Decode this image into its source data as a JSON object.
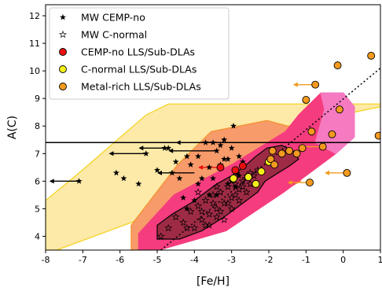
{
  "chart_data": {
    "type": "scatter",
    "xlabel": "[Fe/H]",
    "ylabel": "A(C)",
    "xlim": [
      -8,
      1
    ],
    "ylim": [
      3.5,
      12.4
    ],
    "xticks": [
      "-8",
      "-7",
      "-6",
      "-5",
      "-4",
      "-3",
      "-2",
      "-1",
      "0",
      "1"
    ],
    "yticks": [
      "4",
      "5",
      "6",
      "7",
      "8",
      "9",
      "10",
      "11",
      "12"
    ],
    "grid": false,
    "legend": {
      "location": "top-left",
      "entries": [
        {
          "label": "MW CEMP-no",
          "marker": "star-filled",
          "color": "#000000"
        },
        {
          "label": "MW C-normal",
          "marker": "star-open",
          "color": "#000000"
        },
        {
          "label": "CEMP-no LLS/Sub-DLAs",
          "marker": "circle",
          "color": "#e8100f"
        },
        {
          "label": "C-normal LLS/Sub-DLAs",
          "marker": "circle",
          "color": "#f4f01a"
        },
        {
          "label": "Metal-rich LLS/Sub-DLAs",
          "marker": "circle",
          "color": "#f39a1f"
        }
      ]
    },
    "reference_lines": {
      "horizontal_y": 7.4,
      "dotted_line": {
        "x": [
          -4.9,
          1
        ],
        "y": [
          3.5,
          10.1
        ]
      }
    },
    "regions": [
      {
        "name": "yellow",
        "fill": "#fde9a8",
        "stroke": "#f3d21a",
        "x": [
          -8,
          -8,
          -7.1,
          -5.3,
          -4.7,
          -3.05,
          -1.45,
          1,
          1,
          -2.9,
          -4.1,
          -5.5,
          -7.7
        ],
        "y": [
          3.5,
          5.3,
          6.3,
          8.4,
          8.8,
          8.8,
          8.8,
          8.8,
          8.7,
          7.6,
          6.1,
          4.6,
          3.5
        ]
      },
      {
        "name": "orange",
        "fill": "#f89b6a",
        "stroke": "#f3902a",
        "x": [
          -5.7,
          -5.7,
          -4.45,
          -3.55,
          -2.05,
          -0.95,
          -0.95,
          -1.15,
          -2.05,
          -3.55,
          -5.1
        ],
        "y": [
          3.5,
          4.4,
          6.6,
          7.8,
          8.2,
          7.8,
          7.0,
          6.0,
          5.3,
          4.1,
          3.5
        ]
      },
      {
        "name": "magenta",
        "fill": "#f53c7e",
        "stroke": "#f53c7e",
        "x": [
          -5.5,
          -5.5,
          -4.55,
          -3.0,
          -1.55,
          -1.2,
          -0.6,
          0,
          0.3,
          0.3,
          -0.2,
          -1.6,
          -3.15,
          -4.95
        ],
        "y": [
          3.5,
          4.1,
          5.5,
          6.6,
          7.8,
          8.4,
          9.2,
          9.2,
          8.7,
          7.6,
          7.0,
          5.6,
          4.2,
          3.5
        ]
      },
      {
        "name": "magenta-edge",
        "fill": "#f57ac0",
        "stroke": "#f57ac0",
        "x": [
          -0.6,
          0,
          0.3,
          0.3,
          -0.2,
          -0.75,
          -0.5
        ],
        "y": [
          9.2,
          9.2,
          8.7,
          7.6,
          7.0,
          7.4,
          8.6
        ]
      },
      {
        "name": "dark",
        "fill": "#9e2b45",
        "stroke": "#000000",
        "x": [
          -5.0,
          -5.0,
          -4.8,
          -4.6,
          -4.1,
          -3.7,
          -3.4,
          -3.0,
          -2.6,
          -2.35,
          -2.05,
          -1.65,
          -1.35,
          -1.2,
          -1.45,
          -1.75,
          -2.1,
          -2.3,
          -2.7,
          -3.2,
          -3.8,
          -4.4
        ],
        "y": [
          3.9,
          4.4,
          4.6,
          4.8,
          5.2,
          5.6,
          5.9,
          6.2,
          6.6,
          6.9,
          7.2,
          7.3,
          7.1,
          6.8,
          6.55,
          6.3,
          6.0,
          5.6,
          5.2,
          4.7,
          4.2,
          3.9
        ]
      }
    ],
    "series": [
      {
        "name": "MW CEMP-no",
        "marker": "star-filled",
        "color": "#000000",
        "x": [
          -7.1,
          -6.1,
          -5.9,
          -5.5,
          -5.3,
          -5.0,
          -4.8,
          -4.7,
          -4.6,
          -4.4,
          -4.3,
          -4.2,
          -4.1,
          -4.0,
          -3.9,
          -3.8,
          -3.7,
          -3.6,
          -3.5,
          -3.4,
          -3.3,
          -3.2,
          -3.1,
          -3.0,
          -2.95,
          -2.9,
          -2.85,
          -2.8,
          -3.5,
          -3.3,
          -3.1,
          -2.7,
          -2.6,
          -3.6,
          -3.9,
          -4.2,
          -4.5,
          -3.0,
          -2.8,
          -3.2,
          -3.4,
          -2.9
        ],
        "y": [
          6.0,
          6.3,
          6.1,
          5.9,
          7.0,
          6.4,
          7.2,
          7.2,
          6.3,
          6.1,
          5.4,
          6.9,
          6.6,
          5.3,
          5.9,
          6.1,
          7.4,
          5.5,
          6.1,
          7.1,
          7.3,
          7.5,
          6.8,
          7.2,
          8.0,
          6.4,
          6.3,
          6.9,
          7.4,
          6.6,
          5.9,
          6.7,
          6.2,
          6.5,
          6.9,
          5.0,
          6.7,
          6.0,
          6.2,
          6.8,
          5.5,
          5.8
        ]
      },
      {
        "name": "MW C-normal",
        "marker": "star-open",
        "color": "#000000",
        "x": [
          -4.9,
          -4.7,
          -4.5,
          -4.3,
          -4.1,
          -4.0,
          -3.9,
          -3.8,
          -3.7,
          -3.6,
          -3.5,
          -3.4,
          -3.3,
          -3.2,
          -3.1,
          -3.0,
          -2.9,
          -2.8,
          -2.7,
          -2.6,
          -2.5,
          -2.4,
          -2.3,
          -3.8,
          -3.6,
          -3.4,
          -3.2,
          -3.0,
          -2.8,
          -2.6,
          -4.2,
          -3.9,
          -3.5,
          -3.3,
          -3.1,
          -2.9,
          -2.7,
          -2.5,
          -3.7,
          -3.4
        ],
        "y": [
          4.0,
          4.3,
          4.7,
          4.5,
          4.9,
          4.3,
          5.1,
          4.6,
          5.3,
          4.8,
          5.5,
          5.0,
          5.6,
          5.2,
          5.8,
          5.4,
          5.9,
          5.7,
          6.0,
          6.1,
          6.3,
          6.2,
          6.4,
          4.9,
          4.4,
          4.7,
          4.6,
          5.0,
          5.3,
          5.6,
          4.3,
          5.6,
          5.2,
          4.9,
          5.2,
          5.5,
          5.8,
          5.9,
          4.4,
          5.8
        ]
      },
      {
        "name": "CEMP-no LLS/Sub-DLAs",
        "marker": "circle",
        "color": "#e8100f",
        "x": [
          -3.3,
          -2.9,
          -2.7
        ],
        "y": [
          6.5,
          6.4,
          6.55
        ]
      },
      {
        "name": "C-normal LLS/Sub-DLAs",
        "marker": "circle",
        "color": "#f4f01a",
        "x": [
          -2.95,
          -2.55,
          -2.35,
          -2.2,
          -2.0
        ],
        "y": [
          6.1,
          6.15,
          5.9,
          6.35,
          6.7
        ]
      },
      {
        "name": "Metal-rich LLS/Sub-DLAs",
        "marker": "circle",
        "color": "#f39a1f",
        "x": [
          -1.95,
          -1.9,
          -1.85,
          -1.65,
          -1.45,
          -1.25,
          -1.1,
          -0.9,
          -0.85,
          -0.75,
          -0.55,
          -0.3,
          -0.15,
          -0.1,
          0.1,
          0.75,
          0.95,
          -1.0
        ],
        "y": [
          6.8,
          7.1,
          6.6,
          7.0,
          7.1,
          7.0,
          7.2,
          5.95,
          7.8,
          9.5,
          7.25,
          7.7,
          10.2,
          8.6,
          6.3,
          10.55,
          7.65,
          8.95
        ]
      }
    ],
    "limit_arrows": [
      {
        "x": -7.1,
        "y": 6.0,
        "dx": -0.8,
        "color": "#000000"
      },
      {
        "x": -5.3,
        "y": 7.0,
        "dx": -1.0,
        "color": "#000000"
      },
      {
        "x": -4.7,
        "y": 7.2,
        "dx": -0.8,
        "color": "#000000"
      },
      {
        "x": -4.0,
        "y": 6.3,
        "dx": -1.0,
        "color": "#000000"
      },
      {
        "x": -3.5,
        "y": 7.4,
        "dx": -1.0,
        "color": "#000000"
      },
      {
        "x": -3.4,
        "y": 7.1,
        "dx": -1.3,
        "color": "#000000"
      },
      {
        "x": -3.3,
        "y": 6.5,
        "dx": -0.6,
        "color": "#e8100f"
      },
      {
        "x": -0.9,
        "y": 5.95,
        "dx": -0.6,
        "color": "#f39a1f"
      },
      {
        "x": -0.75,
        "y": 9.5,
        "dx": -0.6,
        "color": "#f39a1f"
      },
      {
        "x": -0.55,
        "y": 7.25,
        "dx": -0.6,
        "color": "#f39a1f"
      },
      {
        "x": 0.1,
        "y": 6.3,
        "dx": -0.6,
        "color": "#f39a1f"
      }
    ]
  }
}
